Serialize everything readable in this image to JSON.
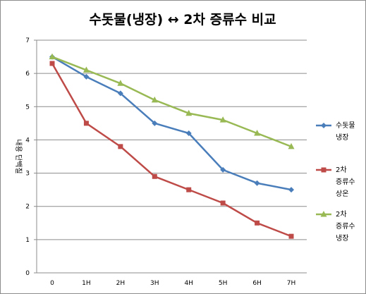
{
  "chart_data": {
    "type": "line",
    "title": "수돗물(냉장) ↔ 2차 증류수 비교",
    "ylabel": "내용 단백질",
    "categories": [
      "0",
      "1H",
      "2H",
      "3H",
      "4H",
      "5H",
      "6H",
      "7H"
    ],
    "ylim": [
      0,
      7
    ],
    "yticks": [
      "0",
      "1",
      "2",
      "3",
      "4",
      "5",
      "6",
      "7"
    ],
    "grid": true,
    "legend_position": "right",
    "series": [
      {
        "name": "수돗물 냉장",
        "legend_lines": [
          "수돗물",
          "냉장"
        ],
        "color": "#4a7ebb",
        "marker": "diamond",
        "values": [
          6.5,
          5.9,
          5.4,
          4.5,
          4.2,
          3.1,
          2.7,
          2.5
        ]
      },
      {
        "name": "2차 증류수 상온",
        "legend_lines": [
          "2차",
          "증류수",
          "상온"
        ],
        "color": "#be4b48",
        "marker": "square",
        "values": [
          6.3,
          4.5,
          3.8,
          2.9,
          2.5,
          2.1,
          1.5,
          1.1
        ]
      },
      {
        "name": "2차 증류수 냉장",
        "legend_lines": [
          "2차",
          "증류수",
          "냉장"
        ],
        "color": "#98b954",
        "marker": "triangle",
        "values": [
          6.5,
          6.1,
          5.7,
          5.2,
          4.8,
          4.6,
          4.2,
          3.8
        ]
      }
    ]
  }
}
